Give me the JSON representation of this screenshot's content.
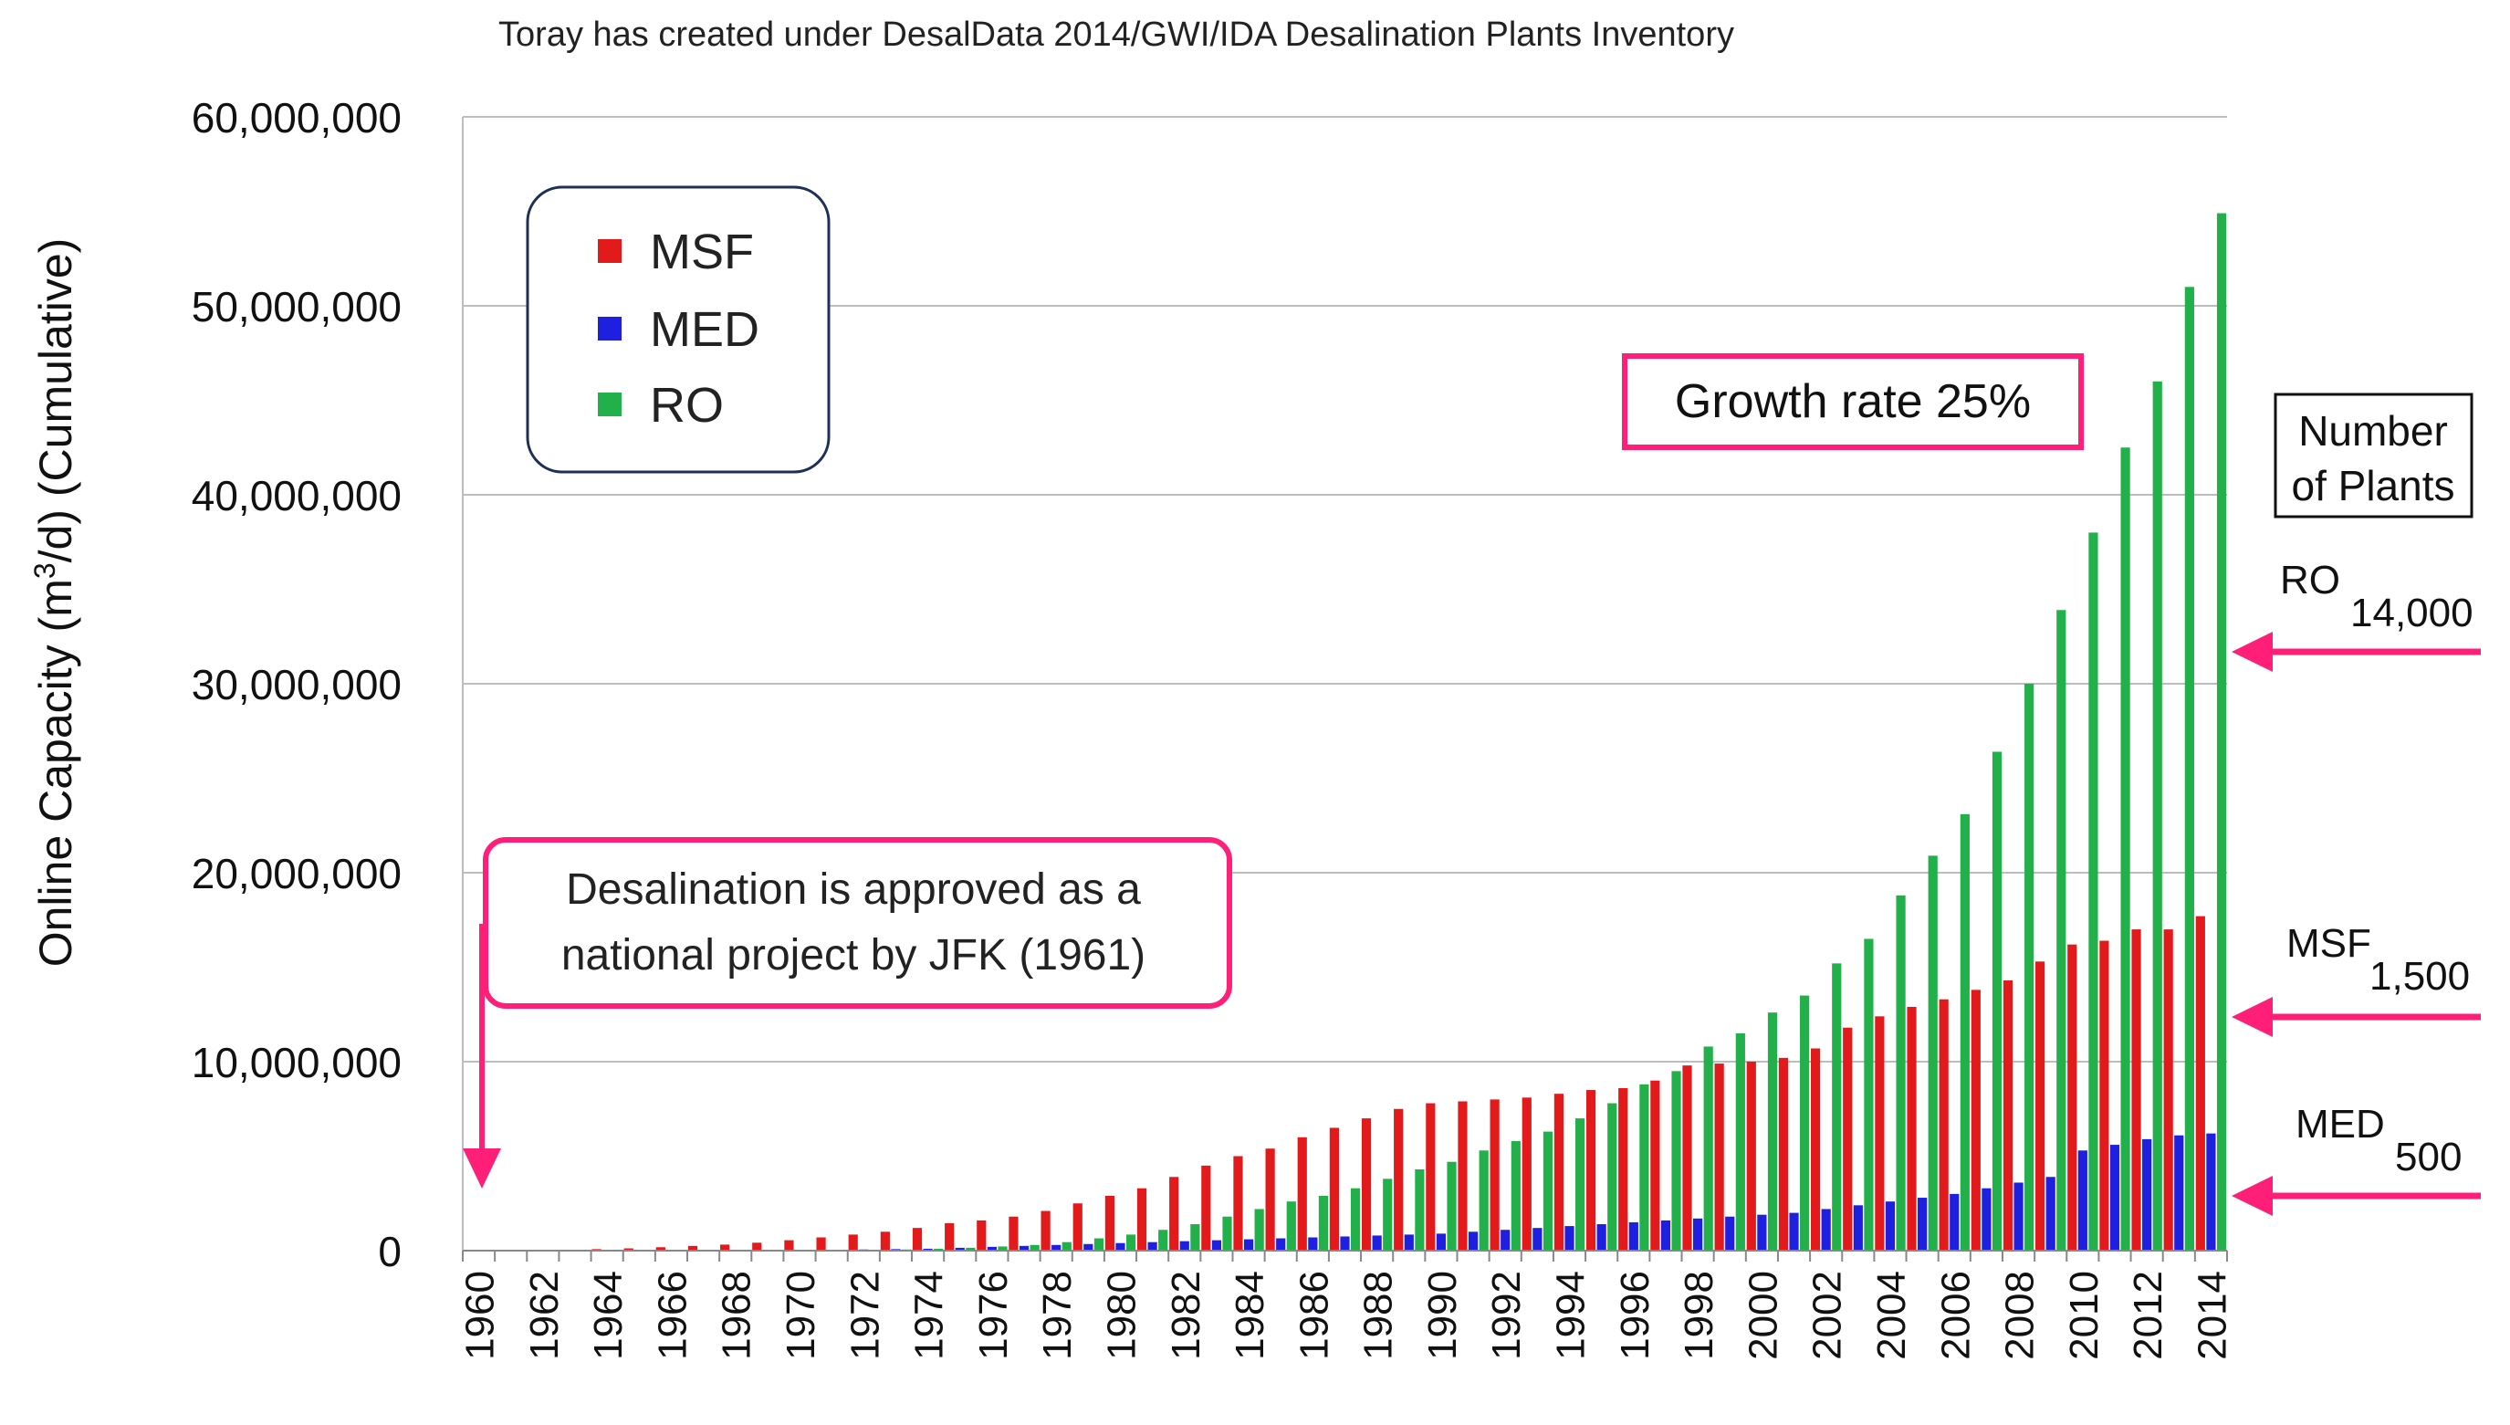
{
  "chart_data": {
    "type": "bar",
    "title": "Toray has created under DesalData 2014/GWI/IDA Desalination Plants Inventory",
    "ylabel": "Online Capacity (m³/d) (Cumulative)",
    "ylabel_parts": {
      "main": "Online Capacity (m",
      "sup": "3",
      "rest": "/d) (Cumulative)"
    },
    "xlabel": "",
    "ylim": [
      0,
      60000000
    ],
    "yticks": [
      0,
      10000000,
      20000000,
      30000000,
      40000000,
      50000000,
      60000000
    ],
    "ytick_labels": [
      "0",
      "10,000,000",
      "20,000,000",
      "30,000,000",
      "40,000,000",
      "50,000,000",
      "60,000,000"
    ],
    "grid": true,
    "legend_position": "top-left",
    "categories": [
      "1960",
      "1961",
      "1962",
      "1963",
      "1964",
      "1965",
      "1966",
      "1967",
      "1968",
      "1969",
      "1970",
      "1971",
      "1972",
      "1973",
      "1974",
      "1975",
      "1976",
      "1977",
      "1978",
      "1979",
      "1980",
      "1981",
      "1982",
      "1983",
      "1984",
      "1985",
      "1986",
      "1987",
      "1988",
      "1989",
      "1990",
      "1991",
      "1992",
      "1993",
      "1994",
      "1995",
      "1996",
      "1997",
      "1998",
      "1999",
      "2000",
      "2001",
      "2002",
      "2003",
      "2004",
      "2005",
      "2006",
      "2007",
      "2008",
      "2009",
      "2010",
      "2011",
      "2012",
      "2013",
      "2014"
    ],
    "xtick_labels": [
      "1960",
      "1962",
      "1964",
      "1966",
      "1968",
      "1970",
      "1972",
      "1974",
      "1976",
      "1978",
      "1980",
      "1982",
      "1984",
      "1986",
      "1988",
      "1990",
      "1992",
      "1994",
      "1996",
      "1998",
      "2000",
      "2002",
      "2004",
      "2006",
      "2008",
      "2010",
      "2012",
      "2014"
    ],
    "series": [
      {
        "name": "MSF",
        "color": "#e31a1c",
        "values": [
          0,
          0,
          20000,
          50000,
          80000,
          120000,
          180000,
          250000,
          320000,
          420000,
          550000,
          700000,
          850000,
          1000000,
          1200000,
          1450000,
          1600000,
          1800000,
          2100000,
          2500000,
          2900000,
          3300000,
          3900000,
          4500000,
          5000000,
          5400000,
          6000000,
          6500000,
          7000000,
          7500000,
          7800000,
          7900000,
          8000000,
          8100000,
          8300000,
          8500000,
          8600000,
          9000000,
          9800000,
          9900000,
          10000000,
          10200000,
          10700000,
          11800000,
          12400000,
          12900000,
          13300000,
          13800000,
          14300000,
          15300000,
          16200000,
          16400000,
          17000000,
          17000000,
          17700000
        ]
      },
      {
        "name": "MED",
        "color": "#1f1fe0",
        "values": [
          0,
          0,
          0,
          0,
          0,
          0,
          0,
          0,
          0,
          0,
          20000,
          40000,
          60000,
          80000,
          100000,
          150000,
          200000,
          250000,
          300000,
          350000,
          400000,
          450000,
          500000,
          550000,
          600000,
          650000,
          700000,
          750000,
          800000,
          850000,
          900000,
          1000000,
          1100000,
          1200000,
          1300000,
          1400000,
          1500000,
          1600000,
          1700000,
          1800000,
          1900000,
          2000000,
          2200000,
          2400000,
          2600000,
          2800000,
          3000000,
          3300000,
          3600000,
          3900000,
          5300000,
          5600000,
          5900000,
          6100000,
          6200000
        ]
      },
      {
        "name": "RO",
        "color": "#22b04a",
        "values": [
          0,
          0,
          0,
          0,
          0,
          0,
          0,
          0,
          0,
          0,
          0,
          0,
          20000,
          60000,
          100000,
          150000,
          220000,
          300000,
          450000,
          650000,
          850000,
          1100000,
          1400000,
          1800000,
          2200000,
          2600000,
          2900000,
          3300000,
          3800000,
          4300000,
          4700000,
          5300000,
          5800000,
          6300000,
          7000000,
          7800000,
          8800000,
          9500000,
          10800000,
          11500000,
          12600000,
          13500000,
          15200000,
          16500000,
          18800000,
          20900000,
          23100000,
          26400000,
          30000000,
          33900000,
          38000000,
          42500000,
          46000000,
          51000000,
          54900000
        ]
      }
    ]
  },
  "annotations": {
    "growth_rate": "Growth rate 25%",
    "jfk_line1": "Desalination is approved as a",
    "jfk_line2": "national project by JFK (1961)",
    "number_of_plants_line1": "Number",
    "number_of_plants_line2": "of Plants",
    "plants": [
      {
        "label": "RO",
        "count": "14,000"
      },
      {
        "label": "MSF",
        "count": "1,500"
      },
      {
        "label": "MED",
        "count": "500"
      }
    ],
    "arrow_color": "#ff1f78"
  }
}
